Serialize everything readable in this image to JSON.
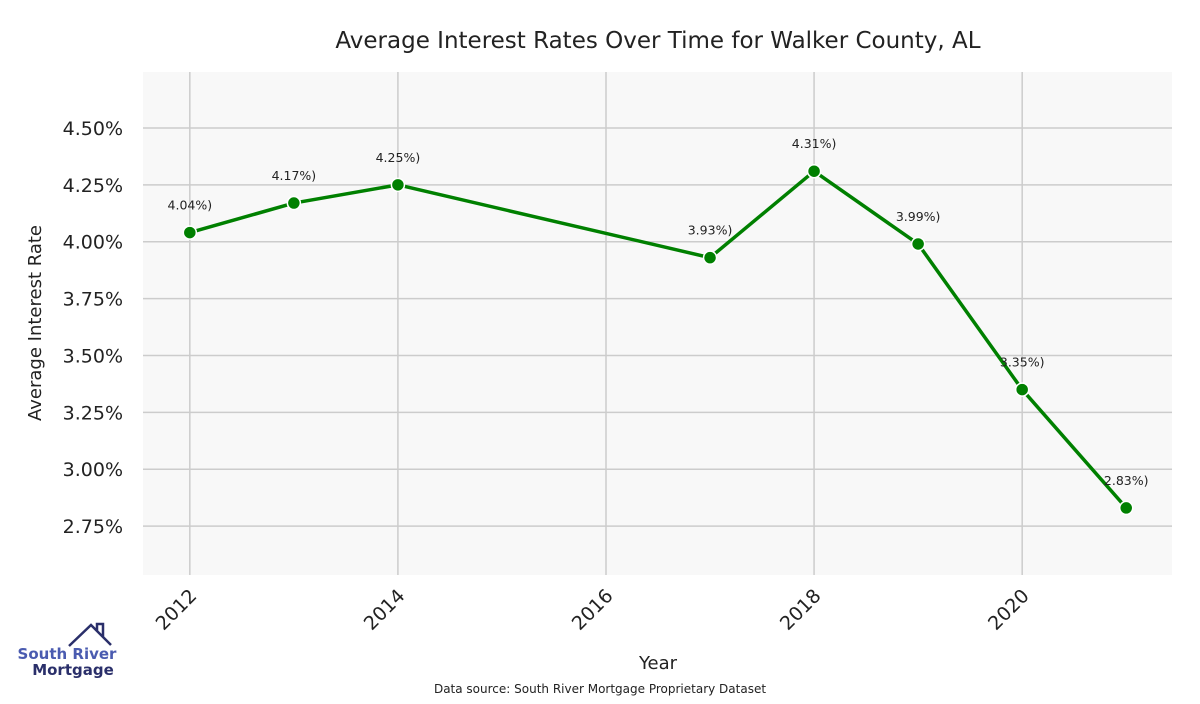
{
  "chart_data": {
    "type": "line",
    "title": "Average Interest Rates Over Time for Walker County, AL",
    "xlabel": "Year",
    "ylabel": "Average Interest Rate",
    "x": [
      2012,
      2013,
      2014,
      2017,
      2018,
      2019,
      2020,
      2021
    ],
    "series": [
      {
        "name": "Average Interest Rate",
        "values": [
          4.04,
          4.17,
          4.25,
          3.93,
          4.31,
          3.99,
          3.35,
          2.83
        ],
        "color": "#008000"
      }
    ],
    "data_labels": [
      "4.04%)",
      "4.17%)",
      "4.25%)",
      "3.93%)",
      "4.31%)",
      "3.99%)",
      "3.35%)",
      "2.83%)"
    ],
    "xticks": [
      2012,
      2014,
      2016,
      2018,
      2020
    ],
    "xtick_labels": [
      "2012",
      "2014",
      "2016",
      "2018",
      "2020"
    ],
    "yticks": [
      2.75,
      3.0,
      3.25,
      3.5,
      3.75,
      4.0,
      4.25,
      4.5
    ],
    "ytick_labels": [
      "2.75%",
      "3.00%",
      "3.25%",
      "3.50%",
      "3.75%",
      "4.00%",
      "4.25%",
      "4.50%"
    ],
    "xlim": [
      2011.55,
      2021.44
    ],
    "ylim": [
      2.535,
      4.746
    ],
    "grid": true,
    "background": "#f8f8f8",
    "grid_color": "#cccccc"
  },
  "footer": {
    "source": "Data source: South River Mortgage Proprietary Dataset"
  },
  "logo": {
    "line1": "South River",
    "line2": "Mortgage"
  }
}
